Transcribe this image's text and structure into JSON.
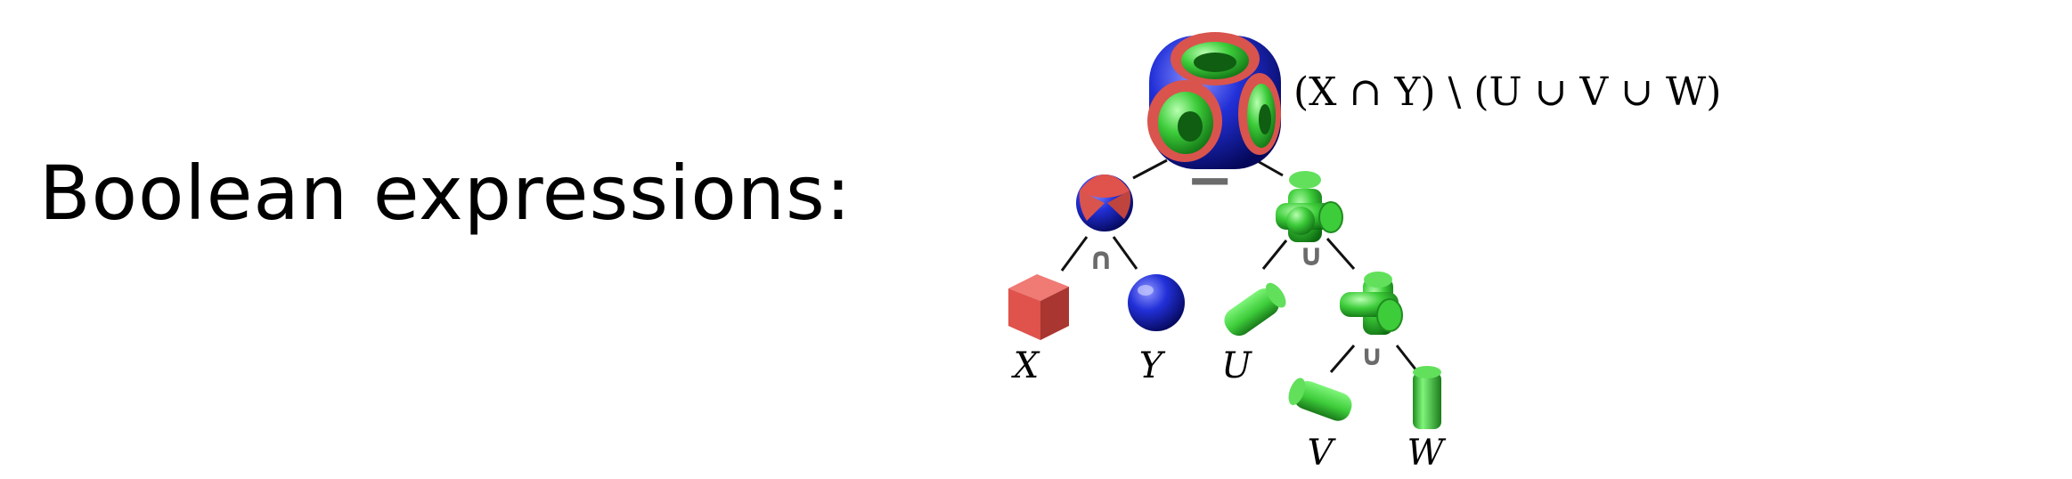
{
  "heading": "Boolean expressions:",
  "expression": "(X ∩ Y) \\ (U ∪ V ∪ W)",
  "operators": {
    "difference": "−",
    "intersection": "∩",
    "union_top": "∪",
    "union_bottom": "∪"
  },
  "leaves": {
    "x": "X",
    "y": "Y",
    "u": "U",
    "v": "V",
    "w": "W"
  },
  "colors": {
    "cube_red": "#e0524c",
    "sphere_blue": "#1f2bd6",
    "cylinder_green": "#3dcc3a",
    "edge": "#111111",
    "operator_gray": "#6b6b6b"
  }
}
